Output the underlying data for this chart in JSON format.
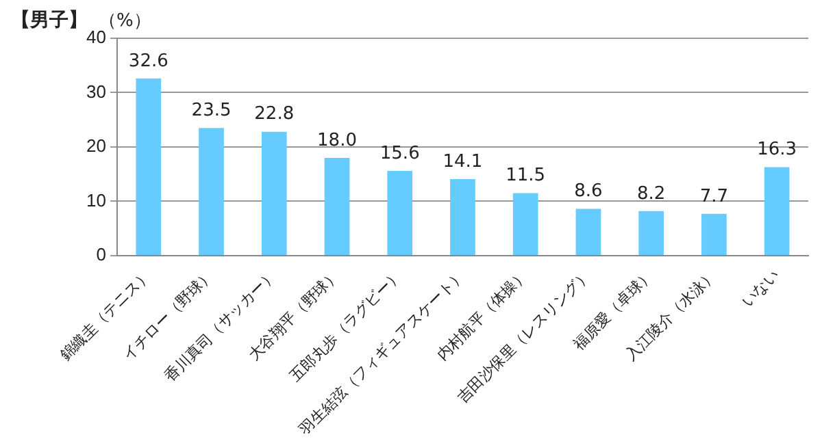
{
  "chart_data": {
    "type": "bar",
    "title": "【男子】",
    "ylabel": "（%）",
    "categories": [
      "錦織圭（テニス）",
      "イチロー（野球）",
      "香川真司（サッカー）",
      "大谷翔平（野球）",
      "五郎丸歩（ラグビー）",
      "羽生結弦（フィギュアスケート）",
      "内村航平（体操）",
      "吉田沙保里（レスリング）",
      "福原愛（卓球）",
      "入江陵介（水泳）",
      "いない"
    ],
    "values": [
      32.6,
      23.5,
      22.8,
      18.0,
      15.6,
      14.1,
      11.5,
      8.6,
      8.2,
      7.7,
      16.3
    ],
    "value_labels": [
      "32.6",
      "23.5",
      "22.8",
      "18.0",
      "15.6",
      "14.1",
      "11.5",
      "8.6",
      "8.2",
      "7.7",
      "16.3"
    ],
    "color": "#66ccff",
    "ylim": [
      0,
      40
    ],
    "yticks": [
      0,
      10,
      20,
      30,
      40
    ],
    "grid": "y",
    "legend": false
  }
}
